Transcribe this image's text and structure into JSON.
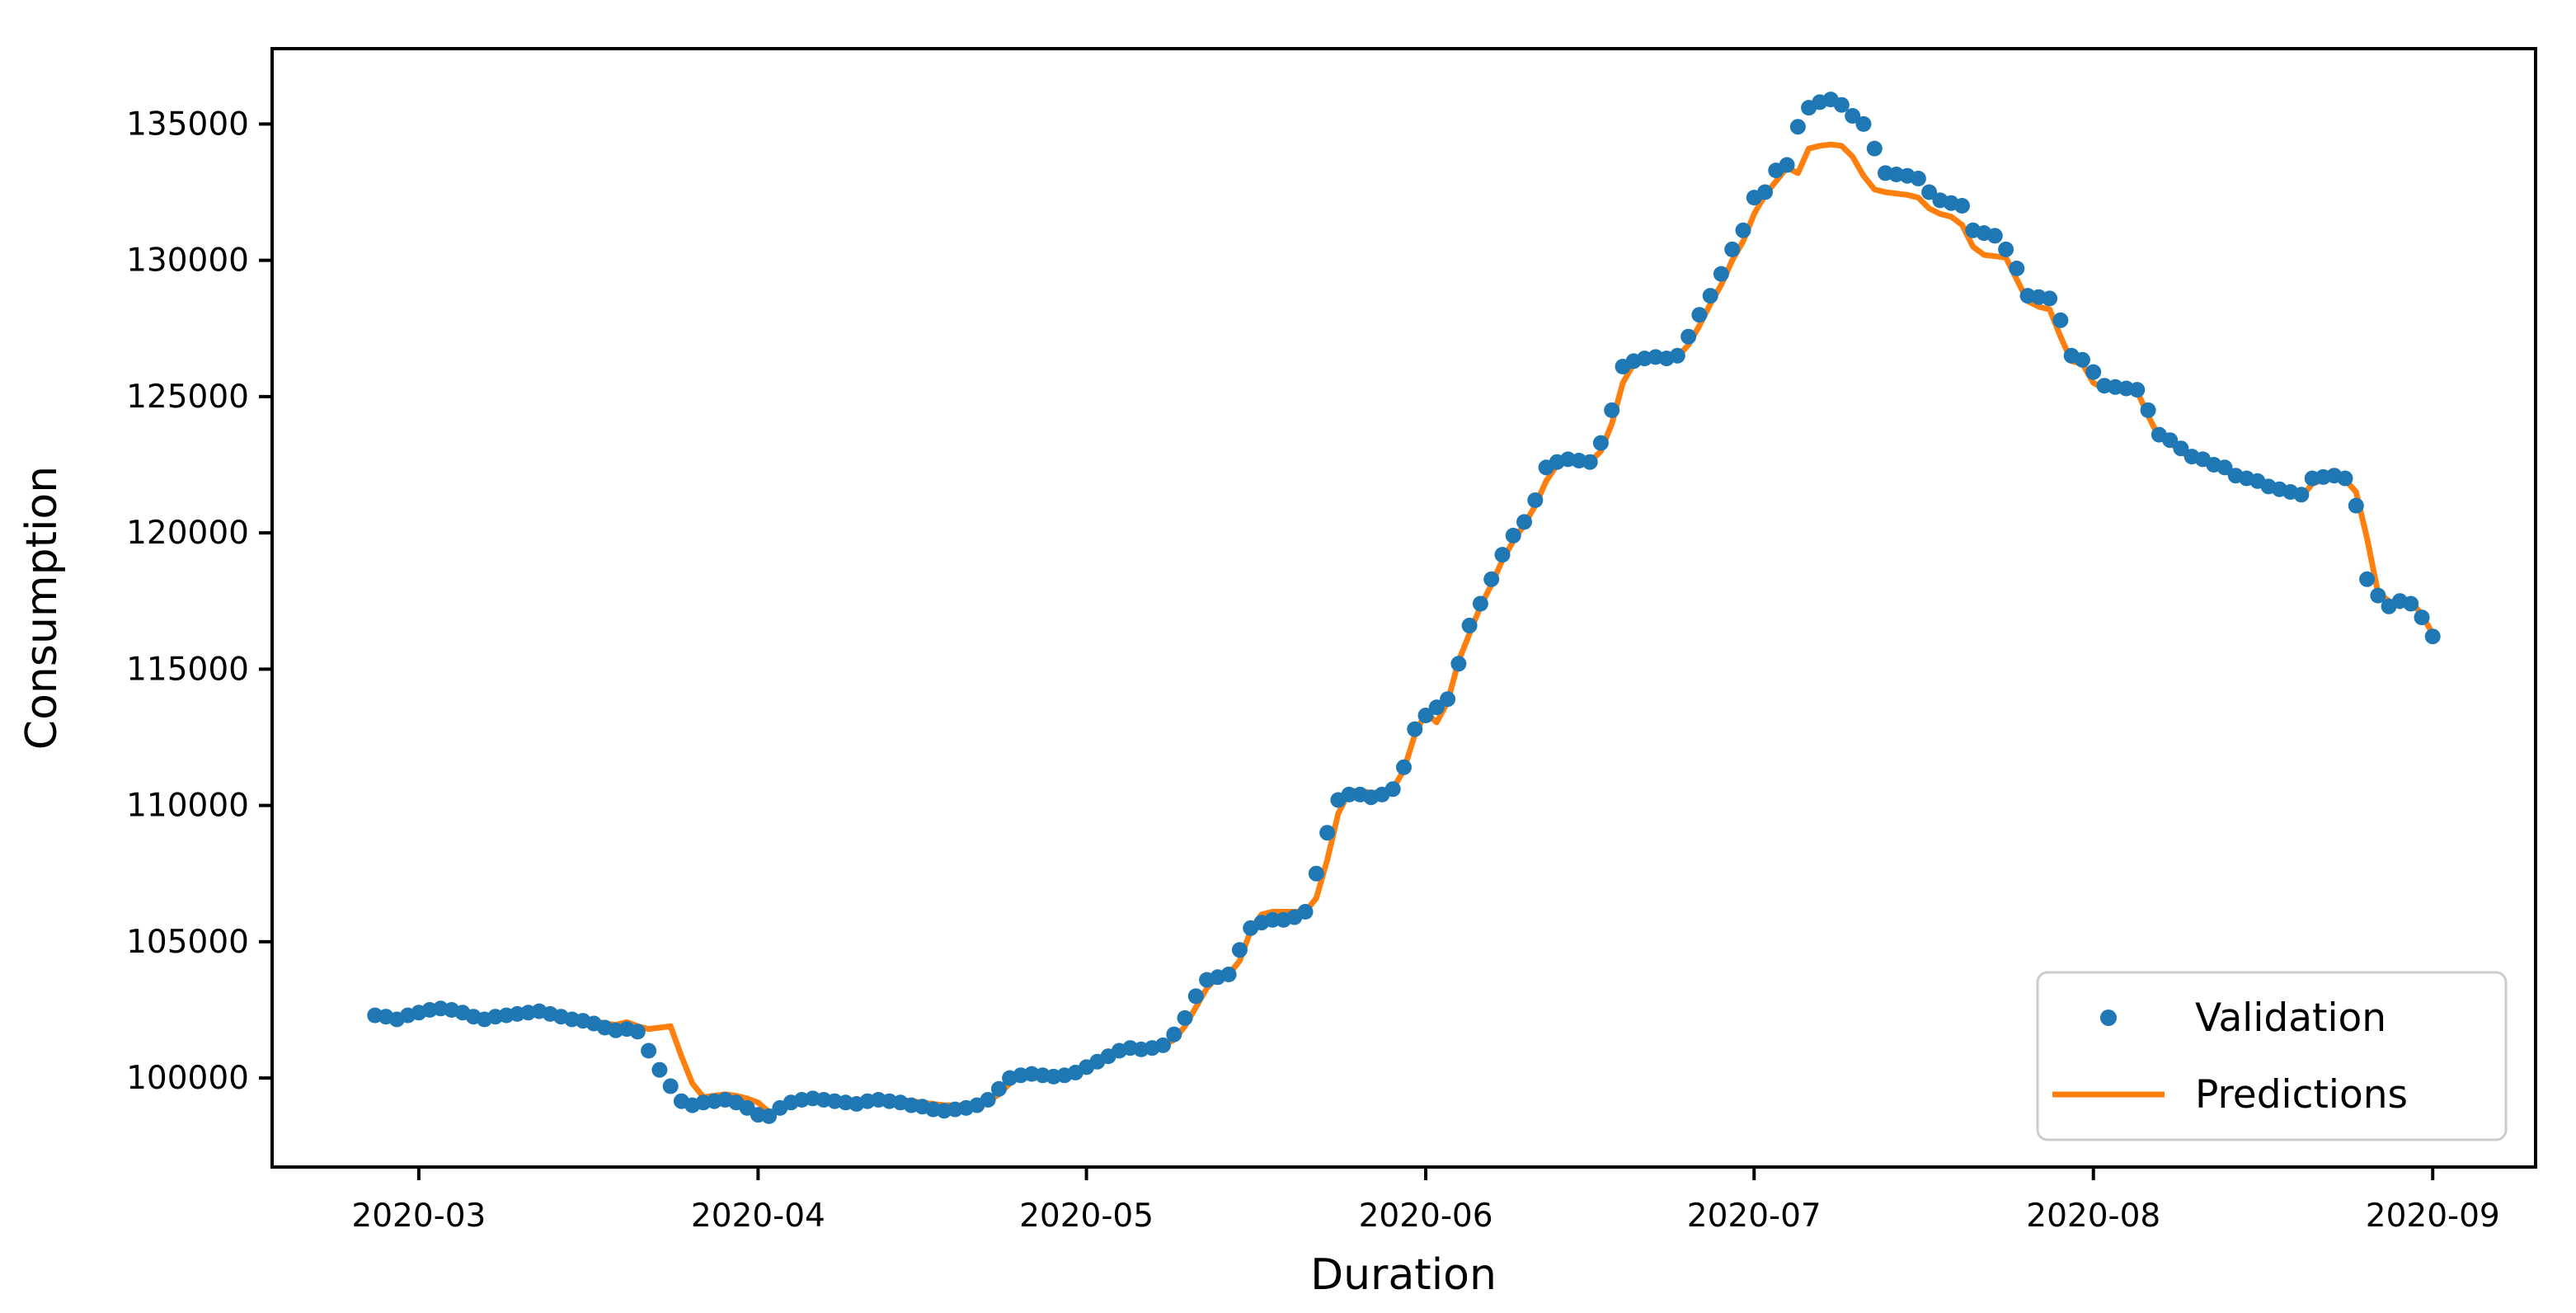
{
  "chart_data": {
    "type": "scatter+line",
    "xlabel": "Duration",
    "ylabel": "Consumption",
    "x_start_date": "2020-02-26",
    "x_frequency": "daily",
    "xticks": [
      {
        "label": "2020-03",
        "day": 4
      },
      {
        "label": "2020-04",
        "day": 35
      },
      {
        "label": "2020-05",
        "day": 65
      },
      {
        "label": "2020-06",
        "day": 96
      },
      {
        "label": "2020-07",
        "day": 126
      },
      {
        "label": "2020-08",
        "day": 157
      },
      {
        "label": "2020-09",
        "day": 188
      }
    ],
    "yticks": [
      100000,
      105000,
      110000,
      115000,
      120000,
      125000,
      130000,
      135000
    ],
    "xlim_days": [
      -9.4,
      197.4
    ],
    "ylim": [
      96735,
      137765
    ],
    "grid": false,
    "legend": {
      "position": "lower right",
      "entries": [
        "Validation",
        "Predictions"
      ]
    },
    "series": [
      {
        "name": "Validation",
        "type": "scatter",
        "color": "#1f77b4",
        "values": [
          102300,
          102250,
          102150,
          102300,
          102400,
          102500,
          102550,
          102500,
          102400,
          102250,
          102150,
          102250,
          102300,
          102350,
          102400,
          102450,
          102350,
          102250,
          102150,
          102100,
          102000,
          101850,
          101750,
          101800,
          101700,
          101000,
          100300,
          99700,
          99150,
          99000,
          99100,
          99150,
          99200,
          99100,
          98900,
          98650,
          98600,
          98900,
          99100,
          99200,
          99250,
          99200,
          99150,
          99100,
          99050,
          99150,
          99200,
          99150,
          99100,
          99000,
          98950,
          98850,
          98800,
          98850,
          98900,
          99000,
          99200,
          99600,
          100000,
          100100,
          100150,
          100100,
          100050,
          100100,
          100200,
          100400,
          100600,
          100800,
          101000,
          101100,
          101050,
          101100,
          101200,
          101600,
          102200,
          103000,
          103600,
          103700,
          103800,
          104700,
          105500,
          105700,
          105800,
          105800,
          105900,
          106100,
          107500,
          109000,
          110200,
          110400,
          110400,
          110300,
          110400,
          110600,
          111400,
          112800,
          113300,
          113600,
          113900,
          115200,
          116600,
          117400,
          118300,
          119200,
          119900,
          120400,
          121200,
          122400,
          122600,
          122700,
          122650,
          122600,
          123300,
          124500,
          126100,
          126300,
          126400,
          126450,
          126400,
          126500,
          127200,
          128000,
          128700,
          129500,
          130400,
          131100,
          132300,
          132500,
          133300,
          133500,
          134900,
          135600,
          135800,
          135900,
          135700,
          135300,
          135000,
          134100,
          133200,
          133150,
          133100,
          133000,
          132500,
          132200,
          132100,
          132000,
          131100,
          131000,
          130900,
          130400,
          129700,
          128700,
          128650,
          128600,
          127800,
          126500,
          126350,
          125900,
          125400,
          125350,
          125300,
          125250,
          124500,
          123600,
          123400,
          123100,
          122800,
          122700,
          122500,
          122400,
          122100,
          122000,
          121900,
          121700,
          121600,
          121500,
          121400,
          122000,
          122050,
          122100,
          122000,
          121000,
          118300,
          117700,
          117300,
          117500,
          117400,
          116900,
          116200
        ]
      },
      {
        "name": "Predictions",
        "type": "line",
        "color": "#ff7f0e",
        "values": [
          102300,
          102350,
          102250,
          102300,
          102450,
          102500,
          102600,
          102550,
          102500,
          102350,
          102250,
          102300,
          102350,
          102400,
          102450,
          102500,
          102450,
          102350,
          102250,
          102200,
          102100,
          102000,
          101950,
          102050,
          101900,
          101800,
          101850,
          101900,
          100800,
          99800,
          99300,
          99350,
          99400,
          99350,
          99250,
          99100,
          98750,
          98800,
          99050,
          99250,
          99300,
          99300,
          99250,
          99200,
          99150,
          99200,
          99250,
          99250,
          99200,
          99150,
          99100,
          99050,
          99000,
          99000,
          99000,
          99050,
          99150,
          99400,
          99800,
          100150,
          100200,
          100200,
          100150,
          100150,
          100200,
          100300,
          100500,
          100700,
          100950,
          101150,
          101150,
          101150,
          101200,
          101400,
          101900,
          102600,
          103300,
          103700,
          103800,
          104300,
          105400,
          106000,
          106100,
          106100,
          106100,
          106100,
          106600,
          108000,
          109700,
          110500,
          110550,
          110450,
          110500,
          110600,
          111300,
          112600,
          113400,
          113050,
          113800,
          115300,
          116300,
          117300,
          118100,
          119000,
          119700,
          120300,
          121000,
          121900,
          122500,
          122650,
          122650,
          122600,
          123000,
          124000,
          125500,
          126200,
          126350,
          126400,
          126400,
          126450,
          126900,
          127600,
          128400,
          129100,
          130000,
          130700,
          131700,
          132400,
          132900,
          133400,
          133200,
          134100,
          134200,
          134250,
          134200,
          133800,
          133100,
          132600,
          132500,
          132450,
          132400,
          132300,
          131900,
          131700,
          131600,
          131300,
          130500,
          130200,
          130150,
          130100,
          129300,
          128500,
          128300,
          128200,
          127200,
          126300,
          126200,
          125500,
          125300,
          125300,
          125350,
          125200,
          124300,
          123500,
          123300,
          123000,
          122700,
          122600,
          122450,
          122300,
          122050,
          121950,
          121850,
          121650,
          121550,
          121500,
          121300,
          121800,
          121950,
          122000,
          121950,
          121500,
          119800,
          117800,
          117500,
          117300,
          117500,
          117000,
          116300
        ]
      }
    ]
  }
}
